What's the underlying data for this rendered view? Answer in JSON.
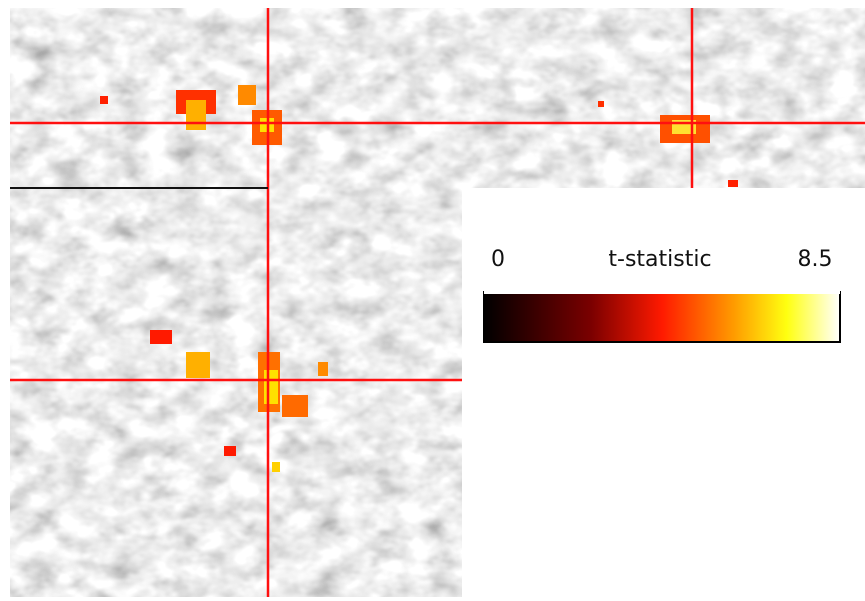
{
  "colorbar": {
    "label": "t-statistic",
    "min": 0,
    "max": 8.5
  }
}
